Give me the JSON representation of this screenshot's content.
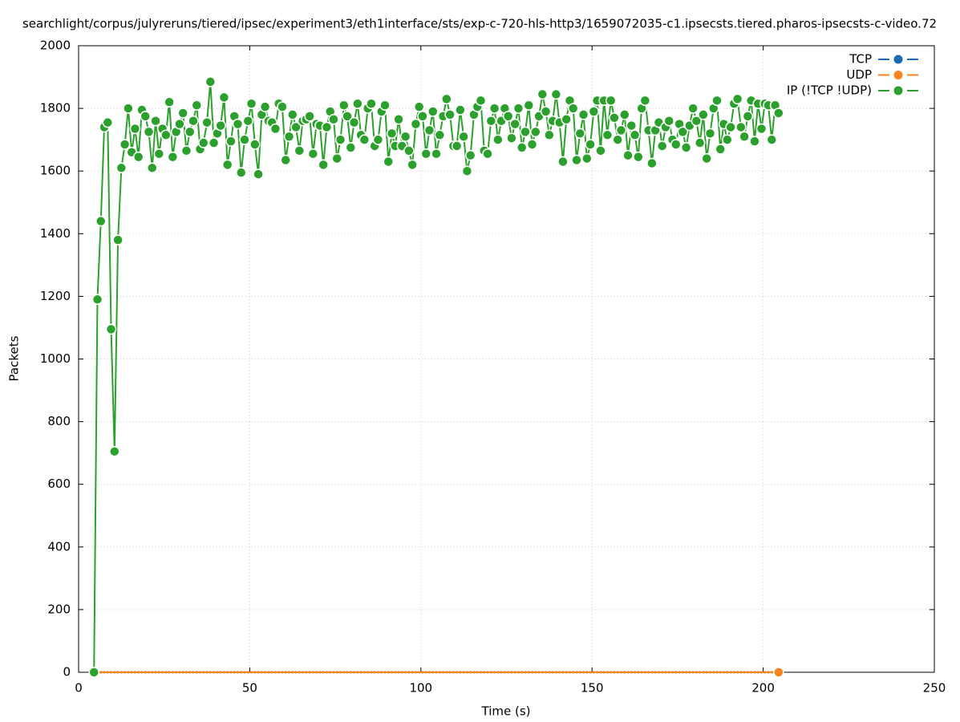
{
  "chart_data": {
    "type": "line",
    "title": "searchlight/corpus/julyreruns/tiered/ipsec/experiment3/eth1interface/sts/exp-c-720-hls-http3/1659072035-c1.ipsecsts.tiered.pharos-ipsecsts-c-video.72",
    "x_label": "Time (s)",
    "y_label": "Packets",
    "xlim": [
      0,
      250
    ],
    "xticks": [
      0,
      50,
      100,
      150,
      200,
      250
    ],
    "ylim": [
      0,
      2000
    ],
    "yticks": [
      0,
      200,
      400,
      600,
      800,
      1000,
      1200,
      1400,
      1600,
      1800,
      2000
    ],
    "grid": true,
    "legend": "top-right",
    "x": [
      4.5,
      5.5,
      6.5,
      7.5,
      8.5,
      9.5,
      10.5,
      11.5,
      12.5,
      13.5,
      14.5,
      15.5,
      16.5,
      17.5,
      18.5,
      19.5,
      20.5,
      21.5,
      22.5,
      23.5,
      24.5,
      25.5,
      26.5,
      27.5,
      28.5,
      29.5,
      30.5,
      31.5,
      32.5,
      33.5,
      34.5,
      35.5,
      36.5,
      37.5,
      38.5,
      39.5,
      40.5,
      41.5,
      42.5,
      43.5,
      44.5,
      45.5,
      46.5,
      47.5,
      48.5,
      49.5,
      50.5,
      51.5,
      52.5,
      53.5,
      54.5,
      55.5,
      56.5,
      57.5,
      58.5,
      59.5,
      60.5,
      61.5,
      62.5,
      63.5,
      64.5,
      65.5,
      66.5,
      67.5,
      68.5,
      69.5,
      70.5,
      71.5,
      72.5,
      73.5,
      74.5,
      75.5,
      76.5,
      77.5,
      78.5,
      79.5,
      80.5,
      81.5,
      82.5,
      83.5,
      84.5,
      85.5,
      86.5,
      87.5,
      88.5,
      89.5,
      90.5,
      91.5,
      92.5,
      93.5,
      94.5,
      95.5,
      96.5,
      97.5,
      98.5,
      99.5,
      100.5,
      101.5,
      102.5,
      103.5,
      104.5,
      105.5,
      106.5,
      107.5,
      108.5,
      109.5,
      110.5,
      111.5,
      112.5,
      113.5,
      114.5,
      115.5,
      116.5,
      117.5,
      118.5,
      119.5,
      120.5,
      121.5,
      122.5,
      123.5,
      124.5,
      125.5,
      126.5,
      127.5,
      128.5,
      129.5,
      130.5,
      131.5,
      132.5,
      133.5,
      134.5,
      135.5,
      136.5,
      137.5,
      138.5,
      139.5,
      140.5,
      141.5,
      142.5,
      143.5,
      144.5,
      145.5,
      146.5,
      147.5,
      148.5,
      149.5,
      150.5,
      151.5,
      152.5,
      153.5,
      154.5,
      155.5,
      156.5,
      157.5,
      158.5,
      159.5,
      160.5,
      161.5,
      162.5,
      163.5,
      164.5,
      165.5,
      166.5,
      167.5,
      168.5,
      169.5,
      170.5,
      171.5,
      172.5,
      173.5,
      174.5,
      175.5,
      176.5,
      177.5,
      178.5,
      179.5,
      180.5,
      181.5,
      182.5,
      183.5,
      184.5,
      185.5,
      186.5,
      187.5,
      188.5,
      189.5,
      190.5,
      191.5,
      192.5,
      193.5,
      194.5,
      195.5,
      196.5,
      197.5,
      198.5,
      199.5,
      200.5,
      201.5,
      202.5,
      203.5,
      204.5
    ],
    "series": [
      {
        "name": "TCP",
        "color": "#1a6bb5",
        "values": [
          0,
          0,
          0,
          0,
          0,
          0,
          0,
          0,
          0,
          0,
          0,
          0,
          0,
          0,
          0,
          0,
          0,
          0,
          0,
          0,
          0,
          0,
          0,
          0,
          0,
          0,
          0,
          0,
          0,
          0,
          0,
          0,
          0,
          0,
          0,
          0,
          0,
          0,
          0,
          0,
          0,
          0,
          0,
          0,
          0,
          0,
          0,
          0,
          0,
          0,
          0,
          0,
          0,
          0,
          0,
          0,
          0,
          0,
          0,
          0,
          0,
          0,
          0,
          0,
          0,
          0,
          0,
          0,
          0,
          0,
          0,
          0,
          0,
          0,
          0,
          0,
          0,
          0,
          0,
          0,
          0,
          0,
          0,
          0,
          0,
          0,
          0,
          0,
          0,
          0,
          0,
          0,
          0,
          0,
          0,
          0,
          0,
          0,
          0,
          0,
          0,
          0,
          0,
          0,
          0,
          0,
          0,
          0,
          0,
          0,
          0,
          0,
          0,
          0,
          0,
          0,
          0,
          0,
          0,
          0,
          0,
          0,
          0,
          0,
          0,
          0,
          0,
          0,
          0,
          0,
          0,
          0,
          0,
          0,
          0,
          0,
          0,
          0,
          0,
          0,
          0,
          0,
          0,
          0,
          0,
          0,
          0,
          0,
          0,
          0,
          0,
          0,
          0,
          0,
          0,
          0,
          0,
          0,
          0,
          0,
          0,
          0,
          0,
          0,
          0,
          0,
          0,
          0,
          0,
          0,
          0,
          0,
          0,
          0,
          0,
          0,
          0,
          0,
          0,
          0,
          0,
          0,
          0,
          0,
          0,
          0,
          0,
          0,
          0,
          0,
          0,
          0,
          0,
          0,
          0,
          0,
          0,
          0,
          0,
          0,
          0
        ]
      },
      {
        "name": "UDP",
        "color": "#f58518",
        "values": [
          0,
          0,
          0,
          0,
          0,
          0,
          0,
          0,
          0,
          0,
          0,
          0,
          0,
          0,
          0,
          0,
          0,
          0,
          0,
          0,
          0,
          0,
          0,
          0,
          0,
          0,
          0,
          0,
          0,
          0,
          0,
          0,
          0,
          0,
          0,
          0,
          0,
          0,
          0,
          0,
          0,
          0,
          0,
          0,
          0,
          0,
          0,
          0,
          0,
          0,
          0,
          0,
          0,
          0,
          0,
          0,
          0,
          0,
          0,
          0,
          0,
          0,
          0,
          0,
          0,
          0,
          0,
          0,
          0,
          0,
          0,
          0,
          0,
          0,
          0,
          0,
          0,
          0,
          0,
          0,
          0,
          0,
          0,
          0,
          0,
          0,
          0,
          0,
          0,
          0,
          0,
          0,
          0,
          0,
          0,
          0,
          0,
          0,
          0,
          0,
          0,
          0,
          0,
          0,
          0,
          0,
          0,
          0,
          0,
          0,
          0,
          0,
          0,
          0,
          0,
          0,
          0,
          0,
          0,
          0,
          0,
          0,
          0,
          0,
          0,
          0,
          0,
          0,
          0,
          0,
          0,
          0,
          0,
          0,
          0,
          0,
          0,
          0,
          0,
          0,
          0,
          0,
          0,
          0,
          0,
          0,
          0,
          0,
          0,
          0,
          0,
          0,
          0,
          0,
          0,
          0,
          0,
          0,
          0,
          0,
          0,
          0,
          0,
          0,
          0,
          0,
          0,
          0,
          0,
          0,
          0,
          0,
          0,
          0,
          0,
          0,
          0,
          0,
          0,
          0,
          0,
          0,
          0,
          0,
          0,
          0,
          0,
          0,
          0,
          0,
          0,
          0,
          0,
          0,
          0,
          0,
          0,
          0,
          0,
          0,
          0
        ]
      },
      {
        "name": "IP (!TCP  !UDP)",
        "color": "#2ca02c",
        "values": [
          0,
          1190,
          1440,
          1740,
          1755,
          1095,
          705,
          1380,
          1610,
          1685,
          1800,
          1660,
          1735,
          1645,
          1795,
          1775,
          1725,
          1610,
          1760,
          1655,
          1735,
          1715,
          1820,
          1645,
          1725,
          1750,
          1785,
          1665,
          1725,
          1760,
          1810,
          1670,
          1690,
          1755,
          1885,
          1690,
          1720,
          1745,
          1835,
          1620,
          1695,
          1775,
          1750,
          1595,
          1700,
          1760,
          1815,
          1685,
          1590,
          1780,
          1805,
          1760,
          1755,
          1735,
          1815,
          1805,
          1635,
          1710,
          1780,
          1740,
          1665,
          1760,
          1765,
          1775,
          1655,
          1750,
          1745,
          1620,
          1740,
          1790,
          1765,
          1640,
          1700,
          1810,
          1775,
          1675,
          1755,
          1815,
          1715,
          1700,
          1800,
          1815,
          1680,
          1700,
          1790,
          1810,
          1630,
          1720,
          1680,
          1765,
          1680,
          1710,
          1665,
          1620,
          1750,
          1805,
          1775,
          1655,
          1730,
          1790,
          1655,
          1715,
          1775,
          1830,
          1780,
          1680,
          1680,
          1795,
          1710,
          1600,
          1650,
          1780,
          1805,
          1825,
          1665,
          1655,
          1760,
          1800,
          1700,
          1760,
          1800,
          1775,
          1705,
          1750,
          1800,
          1675,
          1725,
          1810,
          1685,
          1725,
          1775,
          1845,
          1790,
          1715,
          1760,
          1845,
          1755,
          1630,
          1765,
          1825,
          1800,
          1635,
          1720,
          1780,
          1640,
          1685,
          1790,
          1825,
          1665,
          1825,
          1715,
          1825,
          1770,
          1700,
          1730,
          1780,
          1650,
          1745,
          1715,
          1645,
          1800,
          1825,
          1730,
          1625,
          1730,
          1755,
          1680,
          1740,
          1760,
          1700,
          1685,
          1750,
          1725,
          1675,
          1745,
          1800,
          1760,
          1690,
          1780,
          1640,
          1720,
          1800,
          1825,
          1670,
          1750,
          1700,
          1740,
          1815,
          1830,
          1740,
          1710,
          1775,
          1825,
          1695,
          1815,
          1735,
          1815,
          1810,
          1700,
          1810,
          1785
        ]
      }
    ]
  }
}
